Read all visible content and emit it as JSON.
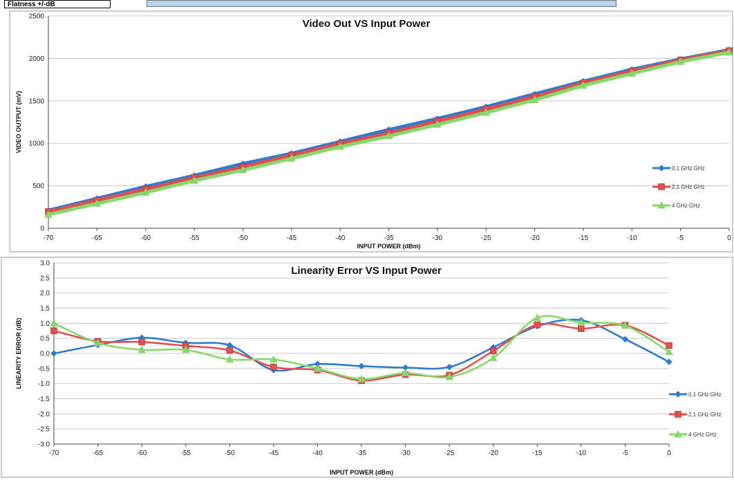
{
  "header_strip": {
    "label": "Flatness +/-dB"
  },
  "colors": {
    "series1": "#2f7bd0",
    "series2": "#e05050",
    "series3": "#86d86a",
    "grid": "#c8c8c8",
    "axis": "#444444"
  },
  "chart_data": [
    {
      "type": "line",
      "title": "Video Out VS Input Power",
      "xlabel": "INPUT POWER (dBm)",
      "ylabel": "VIDEO OUTPUT (mV)",
      "xlim": [
        -70,
        0
      ],
      "ylim": [
        0,
        2500
      ],
      "x": [
        -70,
        -65,
        -60,
        -55,
        -50,
        -45,
        -40,
        -35,
        -30,
        -25,
        -20,
        -15,
        -10,
        -5,
        0
      ],
      "x_ticks": [
        "-70",
        "-65",
        "-60",
        "-55",
        "-50",
        "-45",
        "-40",
        "-35",
        "-30",
        "-25",
        "-20",
        "-15",
        "-10",
        "-5",
        "0"
      ],
      "y_ticks": [
        "0",
        "500",
        "1000",
        "1500",
        "2000",
        "2500"
      ],
      "grid": true,
      "legend_position": "right",
      "series": [
        {
          "name": "0.1 GHz GHz",
          "marker": "diamond",
          "values": [
            210,
            350,
            490,
            620,
            760,
            880,
            1020,
            1160,
            1290,
            1430,
            1580,
            1730,
            1870,
            1990,
            2100
          ]
        },
        {
          "name": "2.1 GHz GHz",
          "marker": "square",
          "values": [
            195,
            330,
            460,
            595,
            720,
            860,
            995,
            1120,
            1260,
            1400,
            1550,
            1710,
            1850,
            1980,
            2090
          ]
        },
        {
          "name": "4 GHz GHz",
          "marker": "triangle",
          "values": [
            160,
            290,
            420,
            560,
            685,
            820,
            960,
            1085,
            1220,
            1360,
            1510,
            1680,
            1820,
            1960,
            2070
          ]
        }
      ]
    },
    {
      "type": "line",
      "title": "Linearity Error VS Input Power",
      "xlabel": "INPUT POWER (dBm)",
      "ylabel": "LINEARITY ERROR (dB)",
      "xlim": [
        -70,
        0
      ],
      "ylim": [
        -3,
        3
      ],
      "x": [
        -70,
        -65,
        -60,
        -55,
        -50,
        -45,
        -40,
        -35,
        -30,
        -25,
        -20,
        -15,
        -10,
        -5,
        0
      ],
      "x_ticks": [
        "-70",
        "-65",
        "-60",
        "-55",
        "-50",
        "-45",
        "-40",
        "-35",
        "-30",
        "-25",
        "-20",
        "-15",
        "-10",
        "-5",
        "0"
      ],
      "y_ticks": [
        "-3.0",
        "-2.5",
        "-2.0",
        "-1.5",
        "-1.0",
        "-0.5",
        "0.0",
        "0.5",
        "1.0",
        "1.5",
        "2.0",
        "2.5",
        "3.0"
      ],
      "grid": true,
      "legend_position": "right",
      "series": [
        {
          "name": "0.1 GHz GHz",
          "marker": "diamond",
          "values": [
            0.0,
            0.28,
            0.52,
            0.35,
            0.27,
            -0.55,
            -0.35,
            -0.42,
            -0.47,
            -0.45,
            0.2,
            0.9,
            1.1,
            0.47,
            -0.28
          ]
        },
        {
          "name": "2.1 GHz GHz",
          "marker": "square",
          "values": [
            0.75,
            0.4,
            0.38,
            0.25,
            0.1,
            -0.45,
            -0.55,
            -0.9,
            -0.7,
            -0.72,
            0.08,
            0.95,
            0.82,
            0.93,
            0.26
          ]
        },
        {
          "name": "4 GHz GHz",
          "marker": "triangle",
          "values": [
            1.0,
            0.35,
            0.12,
            0.12,
            -0.2,
            -0.2,
            -0.5,
            -0.85,
            -0.65,
            -0.78,
            -0.15,
            1.18,
            1.02,
            0.92,
            0.05
          ]
        }
      ]
    }
  ]
}
